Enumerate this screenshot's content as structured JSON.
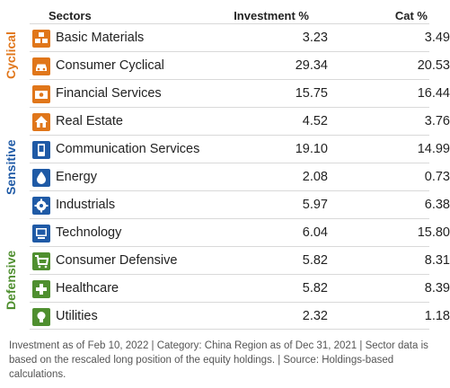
{
  "header": {
    "sectors": "Sectors",
    "investment": "Investment  %",
    "cat": "Cat  %"
  },
  "groups": {
    "cyclical": "Cyclical",
    "sensitive": "Sensitive",
    "defensive": "Defensive"
  },
  "colors": {
    "cyclical": "#e0761a",
    "sensitive": "#1f5aa6",
    "defensive": "#4f8f2f"
  },
  "rows": [
    {
      "icon": "blocks-icon",
      "name": "Basic Materials",
      "inv": "3.23",
      "cat": "3.49"
    },
    {
      "icon": "car-icon",
      "name": "Consumer Cyclical",
      "inv": "29.34",
      "cat": "20.53"
    },
    {
      "icon": "money-icon",
      "name": "Financial Services",
      "inv": "15.75",
      "cat": "16.44"
    },
    {
      "icon": "house-icon",
      "name": "Real Estate",
      "inv": "4.52",
      "cat": "3.76"
    },
    {
      "icon": "phone-icon",
      "name": "Communication Services",
      "inv": "19.10",
      "cat": "14.99"
    },
    {
      "icon": "drop-icon",
      "name": "Energy",
      "inv": "2.08",
      "cat": "0.73"
    },
    {
      "icon": "gear-icon",
      "name": "Industrials",
      "inv": "5.97",
      "cat": "6.38"
    },
    {
      "icon": "computer-icon",
      "name": "Technology",
      "inv": "6.04",
      "cat": "15.80"
    },
    {
      "icon": "cart-icon",
      "name": "Consumer Defensive",
      "inv": "5.82",
      "cat": "8.31"
    },
    {
      "icon": "cross-icon",
      "name": "Healthcare",
      "inv": "5.82",
      "cat": "8.39"
    },
    {
      "icon": "bulb-icon",
      "name": "Utilities",
      "inv": "2.32",
      "cat": "1.18"
    }
  ],
  "footer": "Investment as of Feb 10, 2022 | Category: China Region as of Dec 31, 2021 | Sector data is based on the rescaled long position of the equity holdings. | Source: Holdings-based calculations."
}
